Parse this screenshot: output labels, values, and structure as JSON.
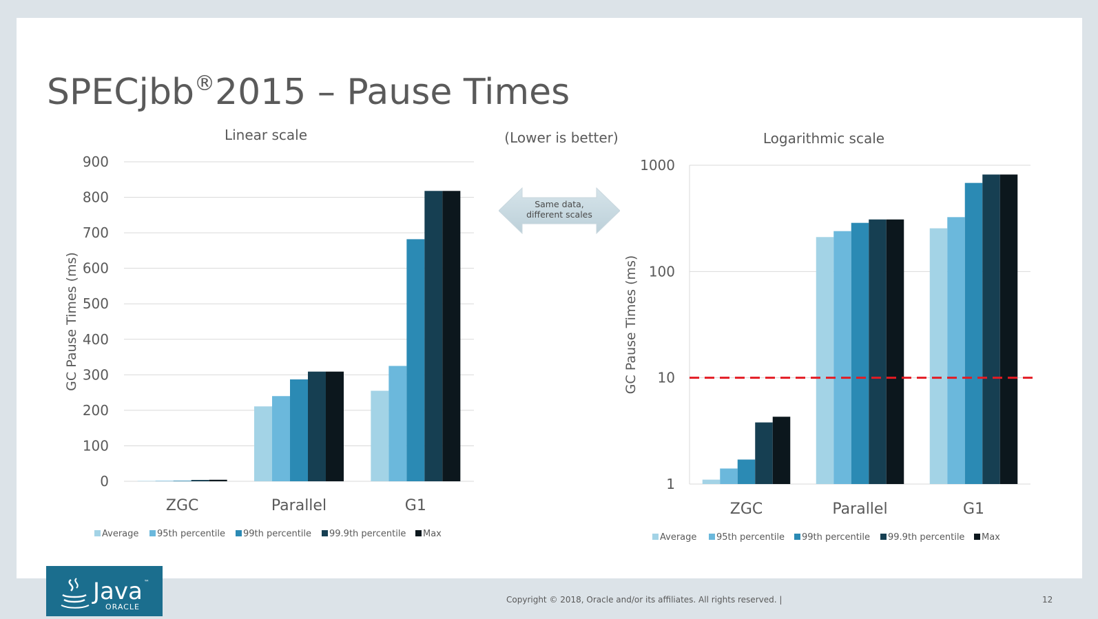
{
  "slide": {
    "title": "SPECjbb",
    "title_reg": "®",
    "title_rest": "2015 – Pause Times",
    "note": "(Lower is better)",
    "arrow_line1": "Same data,",
    "arrow_line2": "different scales",
    "footer": "Copyright © 2018, Oracle and/or its affiliates. All rights reserved.  |",
    "page_number": "12",
    "logo_text": "Java",
    "logo_tm": "™",
    "logo_sub": "ORACLE"
  },
  "colors": {
    "Average": "#a3d3e6",
    "95th percentile": "#6bb8dc",
    "99th percentile": "#2b8ab4",
    "99.9th percentile": "#163f52",
    "Max": "#0c171d",
    "threshold": "#e31b23",
    "logo_bg": "#1b6e8e"
  },
  "chart_data": [
    {
      "type": "bar",
      "title": "Linear scale",
      "ylabel": "GC Pause Times (ms)",
      "xlabel": "",
      "categories": [
        "ZGC",
        "Parallel",
        "G1"
      ],
      "ylim": [
        0,
        900
      ],
      "yticks": [
        "0",
        "100",
        "200",
        "300",
        "400",
        "500",
        "600",
        "700",
        "800",
        "900"
      ],
      "scale": "linear",
      "grid": true,
      "legend_position": "bottom",
      "series": [
        {
          "name": "Average",
          "values": [
            1.1,
            211,
            255
          ]
        },
        {
          "name": "95th percentile",
          "values": [
            1.4,
            240,
            325
          ]
        },
        {
          "name": "99th percentile",
          "values": [
            1.7,
            287,
            682
          ]
        },
        {
          "name": "99.9th percentile",
          "values": [
            3.8,
            309,
            818
          ]
        },
        {
          "name": "Max",
          "values": [
            4.3,
            309,
            818
          ]
        }
      ]
    },
    {
      "type": "bar",
      "title": "Logarithmic scale",
      "ylabel": "GC Pause Times (ms)",
      "xlabel": "",
      "categories": [
        "ZGC",
        "Parallel",
        "G1"
      ],
      "ylim": [
        1,
        1000
      ],
      "yticks": [
        "1",
        "10",
        "100",
        "1000"
      ],
      "scale": "log",
      "grid": true,
      "legend_position": "bottom",
      "threshold": 10,
      "series": [
        {
          "name": "Average",
          "values": [
            1.1,
            211,
            255
          ]
        },
        {
          "name": "95th percentile",
          "values": [
            1.4,
            240,
            325
          ]
        },
        {
          "name": "99th percentile",
          "values": [
            1.7,
            287,
            682
          ]
        },
        {
          "name": "99.9th percentile",
          "values": [
            3.8,
            309,
            818
          ]
        },
        {
          "name": "Max",
          "values": [
            4.3,
            309,
            818
          ]
        }
      ]
    }
  ]
}
